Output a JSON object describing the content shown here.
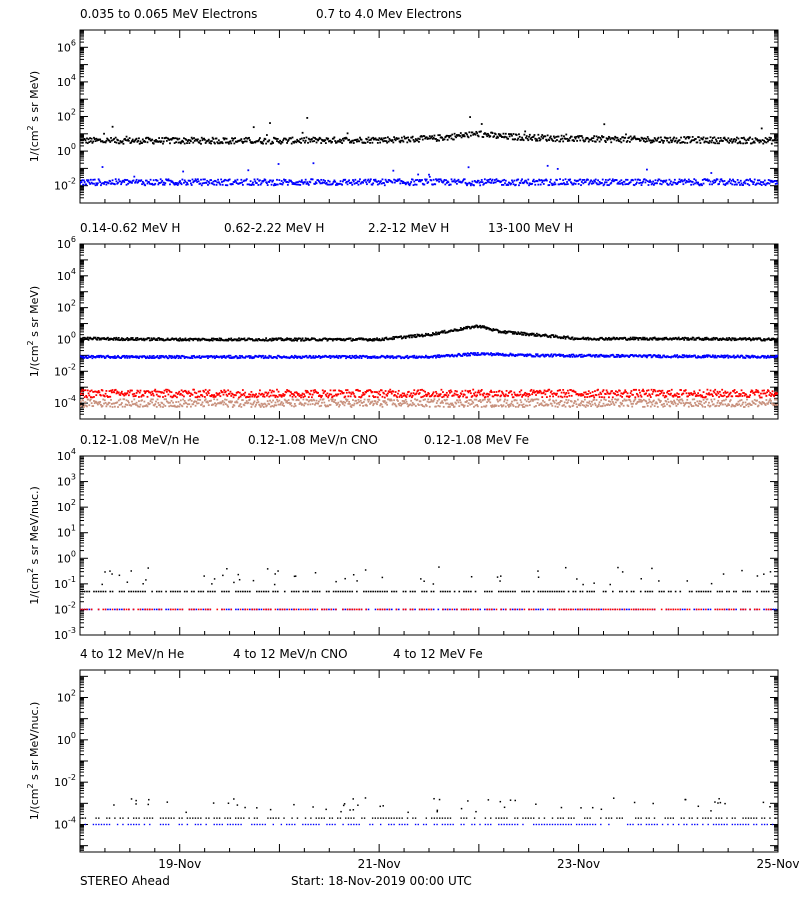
{
  "footer": {
    "left": "STEREO Ahead",
    "center": "Start: 18-Nov-2019 00:00 UTC"
  },
  "colors": {
    "black": "#000000",
    "blue": "#0000ff",
    "tan": "#c8917d",
    "red": "#ff0000"
  },
  "chart_data": [
    {
      "type": "scatter",
      "panel": "electrons",
      "ylabel": "1/(cm^2 s sr MeV)",
      "yscale": "log",
      "ylim_exp": [
        -3,
        7
      ],
      "ytick_exps": [
        -2,
        0,
        2,
        4,
        6
      ],
      "xlabels": [
        "19-Nov",
        "21-Nov",
        "23-Nov",
        "25-Nov"
      ],
      "xlim_days": [
        0,
        7
      ],
      "legend": [
        {
          "name": "0.035 to 0.065 MeV Electrons",
          "color": "#000000"
        },
        {
          "name": "0.7 to 4.0 Mev Electrons",
          "color": "#0000ff"
        }
      ],
      "series": [
        {
          "name": "0.035 to 0.065 MeV Electrons",
          "color": "#000000",
          "x_days": [
            0,
            1,
            2,
            3,
            3.5,
            4.0,
            4.2,
            5,
            6,
            7
          ],
          "log_values": [
            0.6,
            0.6,
            0.6,
            0.65,
            0.7,
            1.0,
            0.85,
            0.7,
            0.65,
            0.6
          ]
        },
        {
          "name": "0.7 to 4.0 Mev Electrons",
          "color": "#0000ff",
          "x_days": [
            0,
            7
          ],
          "log_values": [
            -1.8,
            -1.8
          ]
        }
      ]
    },
    {
      "type": "scatter",
      "panel": "protons",
      "ylabel": "1/(cm^2 s sr MeV)",
      "yscale": "log",
      "ylim_exp": [
        -5,
        6
      ],
      "ytick_exps": [
        -4,
        -2,
        0,
        2,
        4,
        6
      ],
      "xlabels": [
        "19-Nov",
        "21-Nov",
        "23-Nov",
        "25-Nov"
      ],
      "xlim_days": [
        0,
        7
      ],
      "legend": [
        {
          "name": "0.14-0.62 MeV H",
          "color": "#000000"
        },
        {
          "name": "0.62-2.22 MeV H",
          "color": "#0000ff"
        },
        {
          "name": "2.2-12 MeV H",
          "color": "#c8917d"
        },
        {
          "name": "13-100 MeV H",
          "color": "#ff0000"
        }
      ],
      "series": [
        {
          "name": "0.14-0.62 MeV H",
          "color": "#000000",
          "x_days": [
            0,
            1,
            2,
            3,
            3.5,
            4.0,
            4.2,
            5,
            6,
            7
          ],
          "log_values": [
            0.05,
            0.0,
            0.0,
            0.0,
            0.3,
            0.85,
            0.5,
            0.05,
            0.05,
            0.0
          ]
        },
        {
          "name": "0.62-2.22 MeV H",
          "color": "#0000ff",
          "x_days": [
            0,
            3.5,
            4.0,
            4.5,
            7
          ],
          "log_values": [
            -1.1,
            -1.1,
            -0.9,
            -1.0,
            -1.1
          ]
        },
        {
          "name": "2.2-12 MeV H",
          "color": "#c8917d",
          "x_days": [
            0,
            7
          ],
          "log_values": [
            -4.0,
            -4.0
          ]
        },
        {
          "name": "13-100 MeV H",
          "color": "#ff0000",
          "x_days": [
            0,
            7
          ],
          "log_values": [
            -3.4,
            -3.4
          ]
        }
      ]
    },
    {
      "type": "scatter",
      "panel": "heavy-low",
      "ylabel": "1/(cm^2 s sr MeV/nuc.)",
      "yscale": "log",
      "ylim_exp": [
        -3,
        4
      ],
      "ytick_exps": [
        -3,
        -2,
        -1,
        0,
        1,
        2,
        3,
        4
      ],
      "xlabels": [
        "19-Nov",
        "21-Nov",
        "23-Nov",
        "25-Nov"
      ],
      "xlim_days": [
        0,
        7
      ],
      "legend": [
        {
          "name": "0.12-1.08 MeV/n He",
          "color": "#000000"
        },
        {
          "name": "0.12-1.08 MeV/n CNO",
          "color": "#0000ff"
        },
        {
          "name": "0.12-1.08 MeV Fe",
          "color": "#ff0000"
        }
      ],
      "series": [
        {
          "name": "0.12-1.08 MeV/n He",
          "color": "#000000",
          "x_days": [
            0,
            7
          ],
          "log_values": [
            -1.3,
            -1.3
          ]
        },
        {
          "name": "0.12-1.08 MeV/n CNO",
          "color": "#0000ff",
          "x_days": [
            0,
            7
          ],
          "log_values": [
            -2.0,
            -2.0
          ]
        },
        {
          "name": "0.12-1.08 MeV Fe",
          "color": "#ff0000",
          "x_days": [
            0,
            7
          ],
          "log_values": [
            -2.0,
            -2.0
          ]
        }
      ]
    },
    {
      "type": "scatter",
      "panel": "heavy-high",
      "ylabel": "1/(cm^2 s sr MeV/nuc.)",
      "yscale": "log",
      "ylim_exp": [
        -5.3,
        3.3
      ],
      "ytick_exps": [
        -4,
        -2,
        0,
        2
      ],
      "xlabels": [
        "19-Nov",
        "21-Nov",
        "23-Nov",
        "25-Nov"
      ],
      "xlim_days": [
        0,
        7
      ],
      "legend": [
        {
          "name": "4 to 12 MeV/n He",
          "color": "#000000"
        },
        {
          "name": "4 to 12 MeV/n CNO",
          "color": "#0000ff"
        },
        {
          "name": "4 to 12 MeV Fe",
          "color": "#ff0000"
        }
      ],
      "series": [
        {
          "name": "4 to 12 MeV/n He",
          "color": "#000000",
          "x_days": [
            0,
            7
          ],
          "log_values": [
            -3.7,
            -3.7
          ]
        },
        {
          "name": "4 to 12 MeV/n CNO",
          "color": "#0000ff",
          "x_days": [
            0,
            7
          ],
          "log_values": [
            -4.0,
            -4.0
          ]
        }
      ]
    }
  ]
}
